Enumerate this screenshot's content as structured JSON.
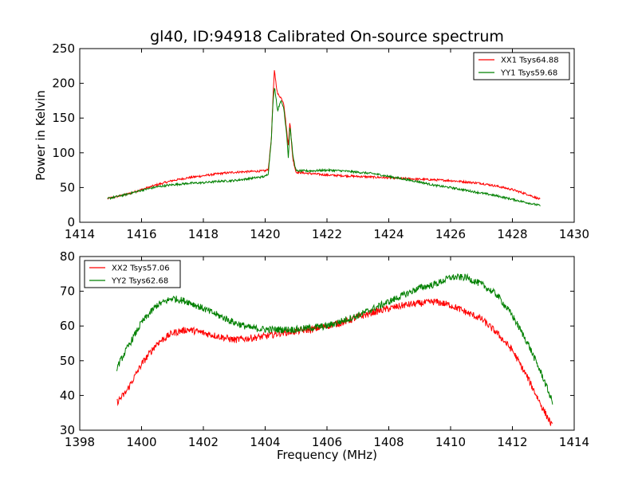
{
  "chart_data": [
    {
      "type": "line",
      "title": "gl40, ID:94918 Calibrated On-source spectrum",
      "xlabel": "",
      "ylabel": "Power in Kelvin",
      "xlim": [
        1414,
        1430
      ],
      "ylim": [
        0,
        250
      ],
      "x_ticks": [
        1414,
        1416,
        1418,
        1420,
        1422,
        1424,
        1426,
        1428,
        1430
      ],
      "y_ticks": [
        0,
        50,
        100,
        150,
        200,
        250
      ],
      "grid": false,
      "legend_position": "top-right",
      "series": [
        {
          "name": "XX1 Tsys64.88",
          "color": "#ff0000",
          "noise": 1.5,
          "points": [
            [
              1414.9,
              34
            ],
            [
              1415.5,
              40
            ],
            [
              1416,
              47
            ],
            [
              1416.5,
              54
            ],
            [
              1417,
              60
            ],
            [
              1417.5,
              64
            ],
            [
              1418,
              67
            ],
            [
              1418.5,
              70
            ],
            [
              1419,
              72
            ],
            [
              1419.5,
              73
            ],
            [
              1420,
              74
            ],
            [
              1420.1,
              76
            ],
            [
              1420.2,
              120
            ],
            [
              1420.25,
              175
            ],
            [
              1420.3,
              220
            ],
            [
              1420.35,
              200
            ],
            [
              1420.4,
              185
            ],
            [
              1420.5,
              180
            ],
            [
              1420.6,
              172
            ],
            [
              1420.7,
              130
            ],
            [
              1420.75,
              110
            ],
            [
              1420.8,
              147
            ],
            [
              1420.85,
              115
            ],
            [
              1420.9,
              90
            ],
            [
              1421,
              72
            ],
            [
              1421.5,
              70
            ],
            [
              1422,
              68
            ],
            [
              1422.5,
              67
            ],
            [
              1423,
              66
            ],
            [
              1423.5,
              65
            ],
            [
              1424,
              64
            ],
            [
              1424.5,
              63
            ],
            [
              1425,
              62
            ],
            [
              1425.5,
              61
            ],
            [
              1426,
              60
            ],
            [
              1426.5,
              58
            ],
            [
              1427,
              56
            ],
            [
              1427.5,
              52
            ],
            [
              1428,
              47
            ],
            [
              1428.5,
              40
            ],
            [
              1428.9,
              33
            ]
          ]
        },
        {
          "name": "YY1 Tsys59.68",
          "color": "#008000",
          "noise": 1.5,
          "points": [
            [
              1414.9,
              34
            ],
            [
              1415.5,
              40
            ],
            [
              1416,
              46
            ],
            [
              1416.5,
              51
            ],
            [
              1417,
              54
            ],
            [
              1417.5,
              56
            ],
            [
              1418,
              57
            ],
            [
              1418.5,
              59
            ],
            [
              1419,
              60
            ],
            [
              1419.5,
              63
            ],
            [
              1420,
              66
            ],
            [
              1420.1,
              70
            ],
            [
              1420.2,
              120
            ],
            [
              1420.25,
              170
            ],
            [
              1420.3,
              195
            ],
            [
              1420.35,
              180
            ],
            [
              1420.4,
              160
            ],
            [
              1420.5,
              175
            ],
            [
              1420.6,
              165
            ],
            [
              1420.7,
              125
            ],
            [
              1420.75,
              92
            ],
            [
              1420.8,
              140
            ],
            [
              1420.85,
              118
            ],
            [
              1420.9,
              95
            ],
            [
              1421,
              74
            ],
            [
              1421.5,
              74
            ],
            [
              1422,
              75
            ],
            [
              1422.5,
              74
            ],
            [
              1423,
              72
            ],
            [
              1423.5,
              70
            ],
            [
              1424,
              66
            ],
            [
              1424.5,
              62
            ],
            [
              1425,
              58
            ],
            [
              1425.5,
              53
            ],
            [
              1426,
              50
            ],
            [
              1426.5,
              46
            ],
            [
              1427,
              42
            ],
            [
              1427.5,
              38
            ],
            [
              1428,
              33
            ],
            [
              1428.5,
              28
            ],
            [
              1428.9,
              24
            ]
          ]
        }
      ]
    },
    {
      "type": "line",
      "title": "",
      "xlabel": "Frequency (MHz)",
      "ylabel": "",
      "xlim": [
        1398,
        1414
      ],
      "ylim": [
        30,
        80
      ],
      "x_ticks": [
        1398,
        1400,
        1402,
        1404,
        1406,
        1408,
        1410,
        1412,
        1414
      ],
      "y_ticks": [
        30,
        40,
        50,
        60,
        70,
        80
      ],
      "grid": false,
      "legend_position": "top-left",
      "series": [
        {
          "name": "XX2 Tsys57.06",
          "color": "#ff0000",
          "noise": 1.0,
          "points": [
            [
              1399.2,
              38
            ],
            [
              1399.5,
              41
            ],
            [
              1400,
              49
            ],
            [
              1400.5,
              55
            ],
            [
              1401,
              58
            ],
            [
              1401.5,
              59
            ],
            [
              1402,
              58
            ],
            [
              1402.5,
              57
            ],
            [
              1403,
              56
            ],
            [
              1403.5,
              56.5
            ],
            [
              1404,
              57
            ],
            [
              1404.5,
              58
            ],
            [
              1405,
              58.5
            ],
            [
              1405.5,
              59
            ],
            [
              1406,
              60
            ],
            [
              1406.5,
              61
            ],
            [
              1407,
              62.5
            ],
            [
              1407.5,
              64
            ],
            [
              1408,
              65
            ],
            [
              1408.5,
              66
            ],
            [
              1409,
              66.5
            ],
            [
              1409.5,
              67
            ],
            [
              1410,
              66
            ],
            [
              1410.5,
              64
            ],
            [
              1411,
              62
            ],
            [
              1411.5,
              58
            ],
            [
              1412,
              53
            ],
            [
              1412.5,
              45
            ],
            [
              1413,
              36
            ],
            [
              1413.3,
              31
            ]
          ]
        },
        {
          "name": "YY2 Tsys62.68",
          "color": "#008000",
          "noise": 1.0,
          "points": [
            [
              1399.2,
              48
            ],
            [
              1399.5,
              53
            ],
            [
              1400,
              61
            ],
            [
              1400.5,
              66
            ],
            [
              1401,
              68
            ],
            [
              1401.5,
              67
            ],
            [
              1402,
              65
            ],
            [
              1402.5,
              63
            ],
            [
              1403,
              61
            ],
            [
              1403.5,
              59.5
            ],
            [
              1404,
              59
            ],
            [
              1404.5,
              59
            ],
            [
              1405,
              59
            ],
            [
              1405.5,
              59.5
            ],
            [
              1406,
              60
            ],
            [
              1406.5,
              61.5
            ],
            [
              1407,
              63
            ],
            [
              1407.5,
              65
            ],
            [
              1408,
              67
            ],
            [
              1408.5,
              69
            ],
            [
              1409,
              71
            ],
            [
              1409.5,
              72
            ],
            [
              1410,
              74
            ],
            [
              1410.5,
              74
            ],
            [
              1411,
              72
            ],
            [
              1411.5,
              69
            ],
            [
              1412,
              63
            ],
            [
              1412.5,
              55
            ],
            [
              1413,
              45
            ],
            [
              1413.3,
              38
            ]
          ]
        }
      ]
    }
  ]
}
